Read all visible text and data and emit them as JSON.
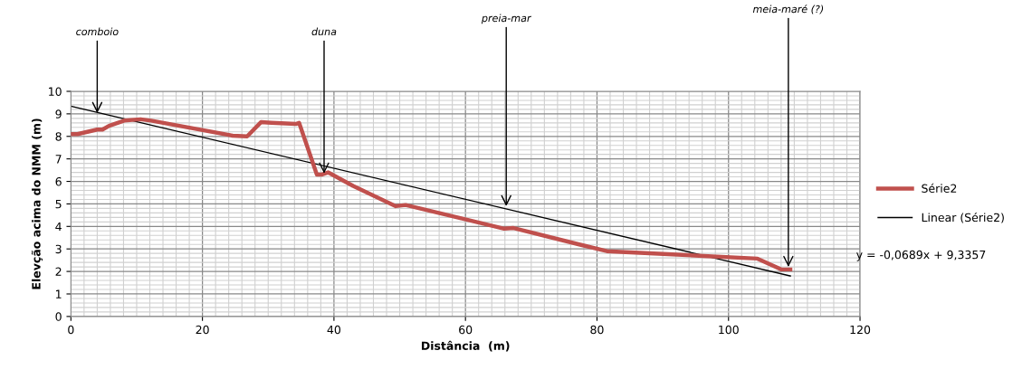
{
  "chart_data": {
    "type": "line",
    "xlabel": "Distância  (m)",
    "ylabel": "Elevção acima do NMM (m)",
    "xlim": [
      0,
      120
    ],
    "xticks": [
      0,
      20,
      40,
      60,
      80,
      100,
      120
    ],
    "ylim": [
      0,
      10
    ],
    "yticks": [
      0,
      1,
      2,
      3,
      4,
      5,
      6,
      7,
      8,
      9,
      10
    ],
    "grid": true,
    "legend": "right",
    "marker": "none",
    "line_style": "solid",
    "series": [
      {
        "name": "Série2",
        "color": "#c0504d",
        "x": [
          0,
          1,
          4,
          4.8,
          5.8,
          8.1,
          10.6,
          12.2,
          24.6,
          26.8,
          28.9,
          30.5,
          34.2,
          34.7,
          37.4,
          38.1,
          39.1,
          42.9,
          49.4,
          50.9,
          65.9,
          67.3,
          77.3,
          81.5,
          96.2,
          104.4,
          108,
          109.4
        ],
        "values": [
          8.1,
          8.1,
          8.3,
          8.3,
          8.47,
          8.7,
          8.76,
          8.7,
          8.03,
          8.0,
          8.63,
          8.6,
          8.55,
          8.6,
          6.3,
          6.3,
          6.4,
          5.8,
          4.9,
          4.95,
          3.9,
          3.93,
          3.2,
          2.9,
          2.69,
          2.57,
          2.09,
          2.09
        ]
      },
      {
        "name": "Linear (Série2)",
        "color": "#000000",
        "x": [
          0,
          109.4
        ],
        "values": [
          9.34,
          1.8
        ]
      }
    ],
    "annotations": [
      {
        "text": "comboio",
        "x": 4,
        "y": 9.04
      },
      {
        "text": "duna",
        "x": 38.5,
        "y": 6.35
      },
      {
        "text": "preia-mar",
        "x": 66.2,
        "y": 4.9
      },
      {
        "text": "meia-maré (?)",
        "x": 109.1,
        "y": 2.2
      },
      "y = -0,0689x + 9,3357"
    ]
  }
}
